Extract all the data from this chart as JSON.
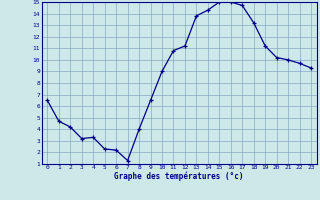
{
  "hours": [
    0,
    1,
    2,
    3,
    4,
    5,
    6,
    7,
    8,
    9,
    10,
    11,
    12,
    13,
    14,
    15,
    16,
    17,
    18,
    19,
    20,
    21,
    22,
    23
  ],
  "temps": [
    6.5,
    4.7,
    4.2,
    3.2,
    3.3,
    2.3,
    2.2,
    1.3,
    4.0,
    6.5,
    9.0,
    10.8,
    11.2,
    13.8,
    14.3,
    15.0,
    15.0,
    14.7,
    13.2,
    11.2,
    10.2,
    10.0,
    9.7,
    9.3
  ],
  "xlabel": "Graphe des températures (°c)",
  "xlim": [
    -0.5,
    23.5
  ],
  "ylim": [
    1,
    15
  ],
  "yticks": [
    1,
    2,
    3,
    4,
    5,
    6,
    7,
    8,
    9,
    10,
    11,
    12,
    13,
    14,
    15
  ],
  "xticks": [
    0,
    1,
    2,
    3,
    4,
    5,
    6,
    7,
    8,
    9,
    10,
    11,
    12,
    13,
    14,
    15,
    16,
    17,
    18,
    19,
    20,
    21,
    22,
    23
  ],
  "line_color": "#00008B",
  "marker_color": "#00008B",
  "bg_color": "#cce8e8",
  "grid_color": "#7799bb",
  "axis_label_color": "#00008B",
  "tick_label_color": "#00008B"
}
